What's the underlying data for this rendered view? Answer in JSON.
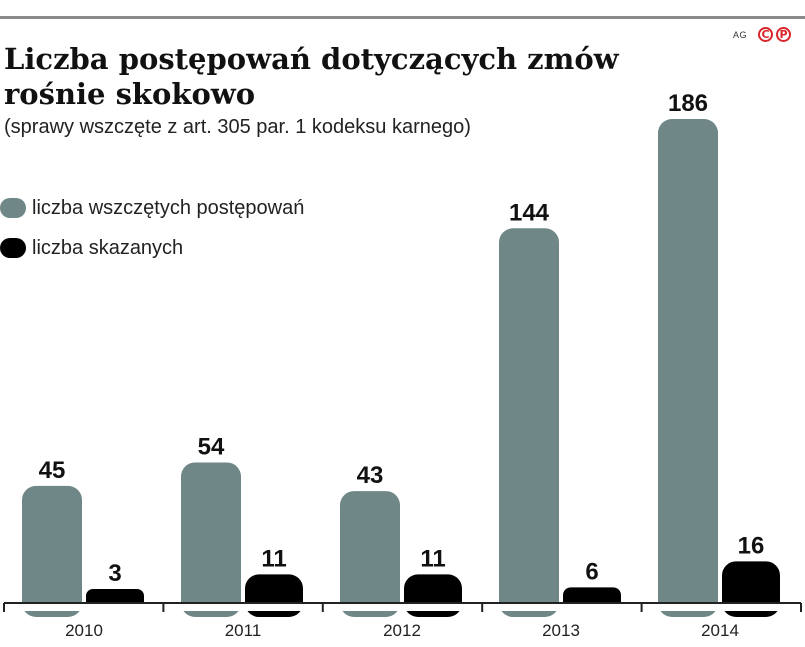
{
  "header": {
    "title": "Liczba postępowań dotyczących zmów rośnie skokowo",
    "subtitle": "(sprawy wszczęte z art. 305 par. 1 kodeksu karnego)",
    "credit": "AG",
    "marks": [
      "C",
      "P"
    ]
  },
  "legend": [
    {
      "label": "liczba wszczętych postępowań",
      "color": "#6f8787"
    },
    {
      "label": "liczba skazanych",
      "color": "#000000"
    }
  ],
  "chart_data": {
    "type": "bar",
    "title": "Liczba postępowań dotyczących zmów rośnie skokowo",
    "subtitle": "(sprawy wszczęte z art. 305 par. 1 kodeksu karnego)",
    "categories": [
      "2010",
      "2011",
      "2012",
      "2013",
      "2014"
    ],
    "series": [
      {
        "name": "liczba wszczętych postępowań",
        "values": [
          45,
          54,
          43,
          144,
          186
        ],
        "color": "#6f8787"
      },
      {
        "name": "liczba skazanych",
        "values": [
          3,
          11,
          11,
          6,
          16
        ],
        "color": "#000000"
      }
    ],
    "xlabel": "",
    "ylabel": "",
    "ylim": [
      0,
      186
    ],
    "grid": false,
    "legend_position": "top-left"
  }
}
